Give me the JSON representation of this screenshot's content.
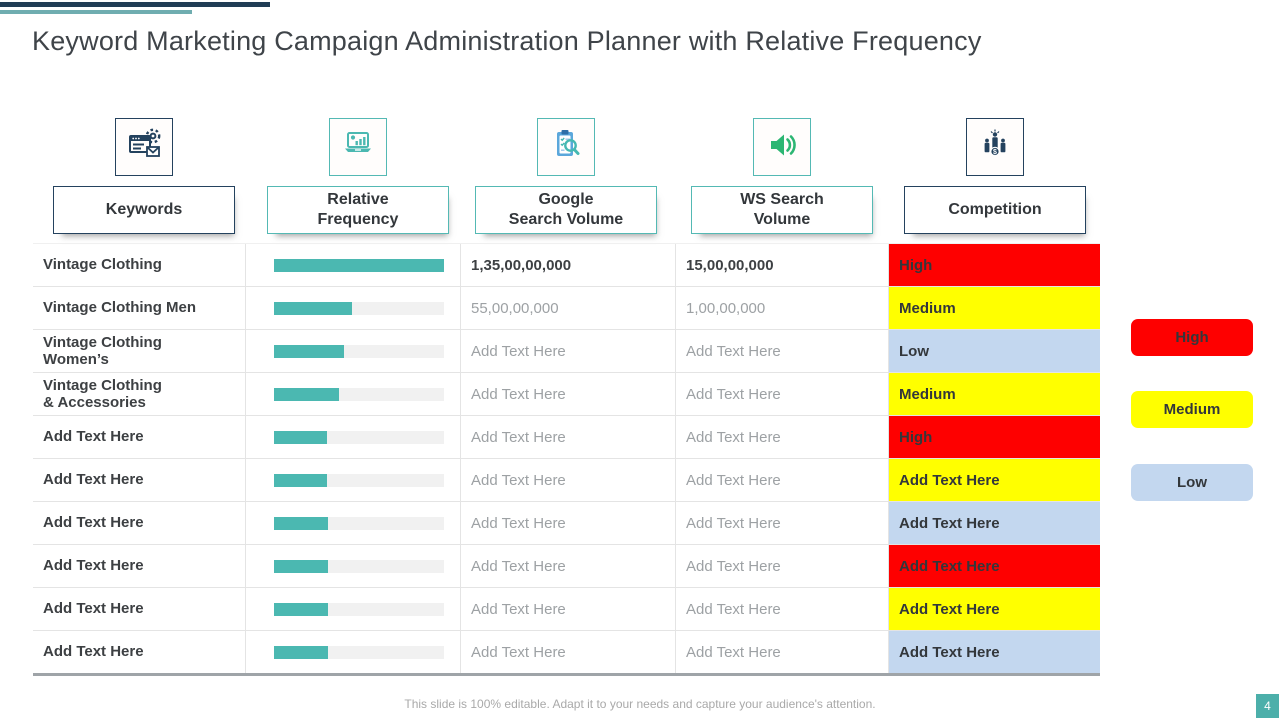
{
  "slide": {
    "title": "Keyword Marketing Campaign Administration Planner with Relative Frequency",
    "footer": "This slide is 100% editable. Adapt it to your needs and capture your audience's attention.",
    "page_number": "4"
  },
  "colors": {
    "navy": "#24425E",
    "teal": "#4BB8B1",
    "speaker_green": "#2CB673",
    "high_red": "#FE0000",
    "medium_yellow": "#FFFF00",
    "low_blue": "#C3D7EF"
  },
  "columns": [
    {
      "label": "Keywords",
      "icon": "server-gear-mail-icon",
      "accent": "navy"
    },
    {
      "label": "Relative\nFrequency",
      "icon": "laptop-analytics-icon",
      "accent": "teal"
    },
    {
      "label": "Google\nSearch Volume",
      "icon": "clipboard-search-icon",
      "accent": "teal"
    },
    {
      "label": "WS Search\nVolume",
      "icon": "speaker-icon",
      "accent": "teal"
    },
    {
      "label": "Competition",
      "icon": "winners-podium-icon",
      "accent": "navy"
    }
  ],
  "table": {
    "rows": [
      {
        "keyword": "Vintage Clothing",
        "frequency_pct": 100,
        "google": "1,35,00,00,000",
        "ws": "15,00,00,000",
        "competition": "High",
        "level": "high",
        "strong": true
      },
      {
        "keyword": "Vintage Clothing Men",
        "frequency_pct": 46,
        "google": "55,00,00,000",
        "ws": "1,00,00,000",
        "competition": "Medium",
        "level": "medium",
        "strong": false
      },
      {
        "keyword": "Vintage Clothing\nWomen’s",
        "frequency_pct": 41,
        "google": "Add Text Here",
        "ws": "Add Text Here",
        "competition": "Low",
        "level": "low",
        "strong": false
      },
      {
        "keyword": "Vintage Clothing\n& Accessories",
        "frequency_pct": 38,
        "google": "Add Text Here",
        "ws": "Add Text Here",
        "competition": "Medium",
        "level": "medium",
        "strong": false
      },
      {
        "keyword": "Add Text Here",
        "frequency_pct": 31,
        "google": "Add Text Here",
        "ws": "Add Text Here",
        "competition": "High",
        "level": "high",
        "strong": false
      },
      {
        "keyword": "Add Text Here",
        "frequency_pct": 31,
        "google": "Add Text Here",
        "ws": "Add Text Here",
        "competition": "Add Text Here",
        "level": "medium",
        "strong": false
      },
      {
        "keyword": "Add Text Here",
        "frequency_pct": 32,
        "google": "Add Text Here",
        "ws": "Add Text Here",
        "competition": "Add Text Here",
        "level": "low",
        "strong": false
      },
      {
        "keyword": "Add Text Here",
        "frequency_pct": 32,
        "google": "Add Text Here",
        "ws": "Add Text Here",
        "competition": "Add Text Here",
        "level": "high",
        "strong": false
      },
      {
        "keyword": "Add Text Here",
        "frequency_pct": 32,
        "google": "Add Text Here",
        "ws": "Add Text Here",
        "competition": "Add Text Here",
        "level": "medium",
        "strong": false
      },
      {
        "keyword": "Add Text Here",
        "frequency_pct": 32,
        "google": "Add Text Here",
        "ws": "Add Text Here",
        "competition": "Add Text Here",
        "level": "low",
        "strong": false
      }
    ]
  },
  "legend": [
    {
      "label": "High",
      "level": "high"
    },
    {
      "label": "Medium",
      "level": "medium"
    },
    {
      "label": "Low",
      "level": "low"
    }
  ]
}
